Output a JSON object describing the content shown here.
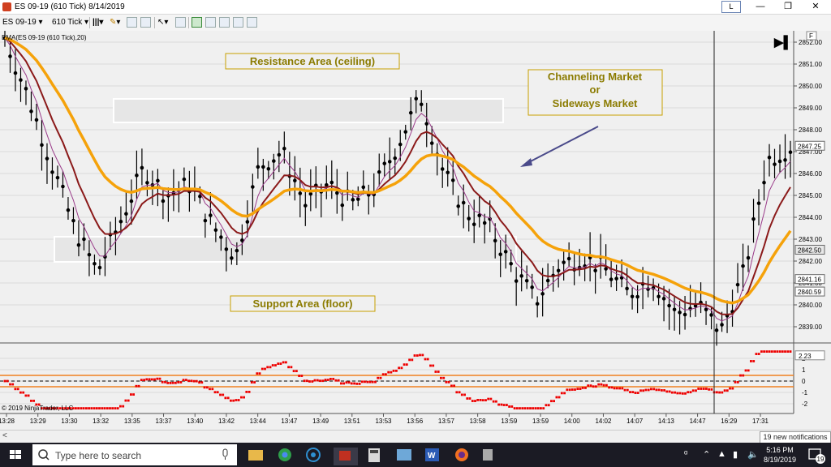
{
  "window": {
    "title": "ES 09-19 (610 Tick)  8/14/2019",
    "layout_button": "L",
    "minimize": "—",
    "restore": "❐",
    "close": "✕"
  },
  "toolbar": {
    "instrument": "ES 09-19",
    "interval": "610 Tick",
    "dropdown": "▾"
  },
  "chart": {
    "indicator_label": "EMA(ES 09-19 (610 Tick),20)",
    "copyright": "© 2019 NinjaTrader, LLC",
    "panel_button": "F",
    "play_button": "▶▌",
    "colors": {
      "bars": "#000000",
      "ema_orange": "#f5a20a",
      "ema_red": "#8b1a1a",
      "ema_purple": "#9a3b8a",
      "osc": "#ee0000",
      "bands": "#f08020",
      "box": "#ffffff",
      "annotation_text": "#8b7b00",
      "annotation_border": "#c8a000"
    },
    "annotations": {
      "resistance": "Resistance Area (ceiling)",
      "support": "Support Area (floor)",
      "channel_line1": "Channeling Market",
      "channel_line2": "or",
      "channel_line3": "Sideways Market"
    },
    "price_axis": [
      "2852.00",
      "2851.00",
      "2850.00",
      "2849.00",
      "2848.00",
      "2847.00",
      "2846.00",
      "2845.00",
      "2844.00",
      "2843.00",
      "2842.00",
      "2841.00",
      "2840.00",
      "2839.00"
    ],
    "price_tags": [
      "2847.25",
      "2842.50",
      "2841.16",
      "2840.59"
    ],
    "osc_axis": [
      "2",
      "1",
      "0",
      "-1",
      "-2"
    ],
    "osc_tag": "2.23",
    "time_axis": [
      "13:28",
      "13:29",
      "13:30",
      "13:32",
      "13:35",
      "13:37",
      "13:40",
      "13:42",
      "13:44",
      "13:47",
      "13:49",
      "13:51",
      "13:53",
      "13:56",
      "13:57",
      "13:58",
      "13:59",
      "13:59",
      "14:00",
      "14:02",
      "14:07",
      "14:13",
      "14:47",
      "16:29",
      "17:31"
    ]
  },
  "chart_data": {
    "type": "line",
    "series": [
      {
        "values": [
          2852.2,
          2849.5,
          2846.5,
          2843.5,
          2841.5,
          2843.8,
          2846.2,
          2845.0,
          2845.5,
          2843.6,
          2842.2,
          2846.3,
          2847.0,
          2844.6,
          2845.5,
          2844.6,
          2845.3,
          2847.3,
          2849.5,
          2846.0,
          2844.2,
          2843.5,
          2841.6,
          2840.2,
          2841.8,
          2842.2,
          2841.6,
          2840.5,
          2841.2,
          2839.6,
          2840.0,
          2838.8,
          2841.5,
          2846.6,
          2847.2
        ]
      }
    ],
    "ylim": [
      2838.5,
      2852.5
    ]
  },
  "taskbar": {
    "search_placeholder": "Type here to search",
    "time": "5:16 PM",
    "date": "8/19/2019",
    "notification_popup": "19 new notifications",
    "notification_count": "19"
  }
}
